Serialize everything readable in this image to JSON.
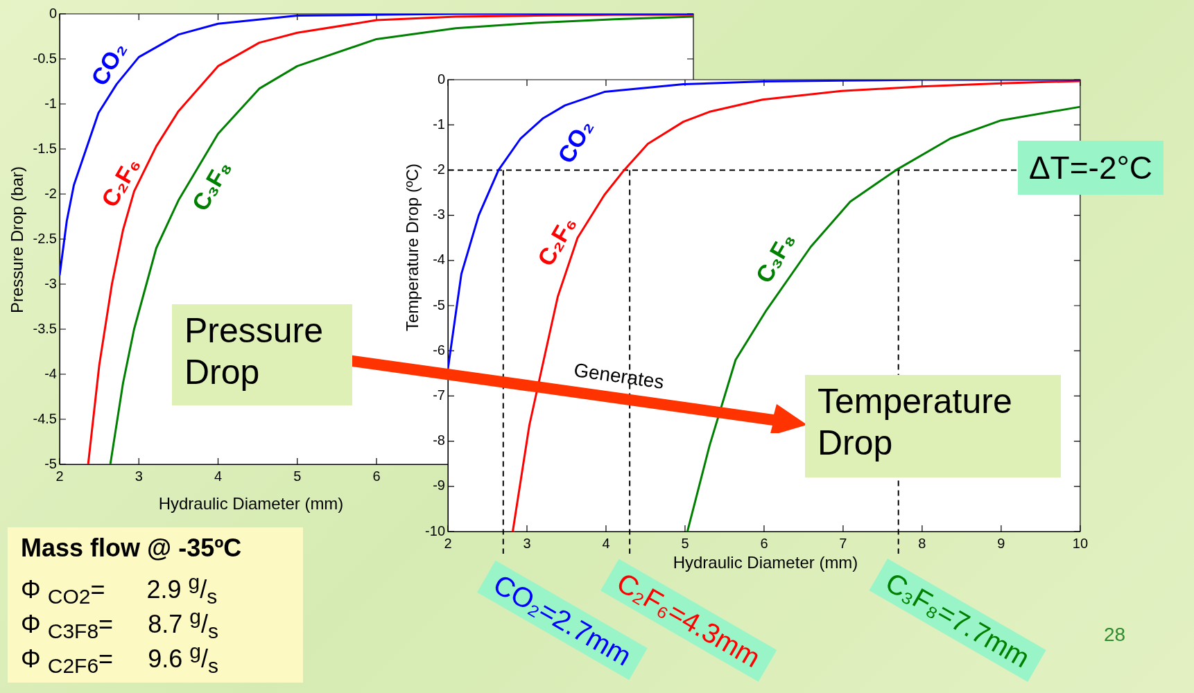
{
  "chart_data": [
    {
      "type": "line",
      "xlabel": "Hydraulic Diameter (mm)",
      "ylabel": "Pressure Drop (bar)",
      "xlim": [
        2,
        10
      ],
      "xticks": [
        2,
        3,
        4,
        5,
        6
      ],
      "ylim": [
        -5,
        0
      ],
      "yticks": [
        -5,
        -4.5,
        -4,
        -3.5,
        -3,
        -2.5,
        -2,
        -1.5,
        -1,
        -0.5,
        0
      ],
      "marker": "none",
      "line_style": "solid",
      "series": [
        {
          "name": "CO₂",
          "color": "#0000ff",
          "x": [
            2,
            2.09,
            2.18,
            2.49,
            2.72,
            3,
            3.5,
            4,
            5,
            6,
            7,
            8,
            10
          ],
          "values": [
            -2.9,
            -2.3,
            -1.9,
            -1.1,
            -0.78,
            -0.48,
            -0.23,
            -0.11,
            -0.02,
            -0.01,
            0,
            0,
            0
          ]
        },
        {
          "name": "C₂F₆",
          "color": "#ff0000",
          "x": [
            2.36,
            2.5,
            2.66,
            2.8,
            2.94,
            3.22,
            3.5,
            4,
            4.52,
            5,
            6,
            7,
            8,
            9,
            10
          ],
          "values": [
            -5,
            -3.9,
            -3,
            -2.4,
            -1.97,
            -1.47,
            -1.08,
            -0.58,
            -0.32,
            -0.21,
            -0.07,
            -0.03,
            -0.02,
            -0.01,
            -0.01
          ]
        },
        {
          "name": "C₃F₈",
          "color": "#008000",
          "x": [
            2.64,
            2.8,
            2.94,
            3.22,
            3.5,
            4,
            4.52,
            5,
            6,
            7,
            8,
            9,
            10
          ],
          "values": [
            -5,
            -4.1,
            -3.5,
            -2.6,
            -2.07,
            -1.33,
            -0.83,
            -0.58,
            -0.28,
            -0.16,
            -0.1,
            -0.06,
            -0.03
          ]
        }
      ],
      "annotations": [
        "Pressure Drop",
        "Mass flow @ -35ºC",
        "Φ $_{CO2}$=      2.9 $^{g}$/$_{s}$",
        "Φ $_{C3F8}$=     8.7 $^{g}$/$_{s}$",
        "Φ $_{C2F6}$=     9.6 $^{g}$/$_{s}$"
      ]
    },
    {
      "type": "line",
      "xlabel": "Hydraulic Diameter (mm)",
      "ylabel": "Temperature Drop (ºC)",
      "xlim": [
        2,
        10
      ],
      "xticks": [
        2,
        3,
        4,
        5,
        6,
        7,
        8,
        9,
        10
      ],
      "ylim": [
        -10,
        0
      ],
      "yticks": [
        -10,
        -9,
        -8,
        -7,
        -6,
        -5,
        -4,
        -3,
        -2,
        -1,
        0
      ],
      "marker": "none",
      "line_style": "solid",
      "series": [
        {
          "name": "CO₂",
          "color": "#0000ff",
          "x": [
            2,
            2.17,
            2.39,
            2.64,
            2.92,
            3.2,
            3.48,
            3.98,
            4.98,
            6,
            7,
            8,
            10
          ],
          "values": [
            -6.4,
            -4.3,
            -3,
            -2,
            -1.3,
            -0.86,
            -0.57,
            -0.27,
            -0.1,
            -0.04,
            -0.02,
            0,
            0
          ]
        },
        {
          "name": "C₂F₆",
          "color": "#ff0000",
          "x": [
            2.82,
            3.03,
            3.2,
            3.39,
            3.64,
            3.98,
            4.23,
            4.53,
            4.98,
            5.31,
            5.98,
            6.98,
            8,
            9,
            10
          ],
          "values": [
            -10,
            -7.65,
            -6.3,
            -4.8,
            -3.5,
            -2.55,
            -2,
            -1.42,
            -0.93,
            -0.71,
            -0.44,
            -0.25,
            -0.15,
            -0.08,
            -0.03
          ]
        },
        {
          "name": "C₃F₈",
          "color": "#008000",
          "x": [
            5.03,
            5.31,
            5.64,
            6.03,
            6.59,
            7.09,
            7.67,
            8.36,
            9,
            10
          ],
          "values": [
            -10,
            -8.1,
            -6.2,
            -5.1,
            -3.7,
            -2.7,
            -2,
            -1.3,
            -0.9,
            -0.6
          ]
        }
      ],
      "ref_lines": [
        {
          "axis": "y",
          "value": -2,
          "label": "ΔT=-2°C",
          "color": "#000000",
          "line_style": "dashed"
        },
        {
          "axis": "x",
          "value": 2.7,
          "label": "CO₂=2.7mm",
          "color": "#000000",
          "line_style": "dashed"
        },
        {
          "axis": "x",
          "value": 4.3,
          "label": "C₂F₆=4.3mm",
          "color": "#000000",
          "line_style": "dashed"
        },
        {
          "axis": "x",
          "value": 7.7,
          "label": "C₃F₈=7.7mm",
          "color": "#000000",
          "line_style": "dashed"
        }
      ],
      "annotations": [
        "Generates",
        "Temperature Drop",
        "28"
      ]
    }
  ]
}
